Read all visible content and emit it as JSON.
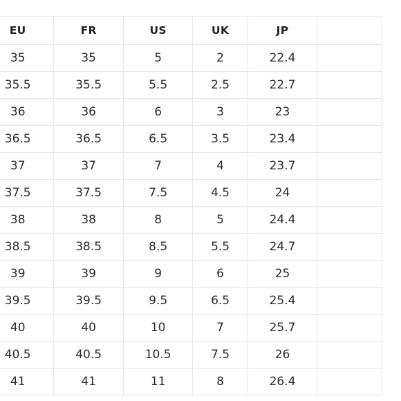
{
  "size_chart": {
    "headers": [
      "EU",
      "FR",
      "US",
      "UK",
      "JP",
      ""
    ],
    "rows": [
      [
        "35",
        "35",
        "5",
        "2",
        "22.4",
        ""
      ],
      [
        "35.5",
        "35.5",
        "5.5",
        "2.5",
        "22.7",
        ""
      ],
      [
        "36",
        "36",
        "6",
        "3",
        "23",
        ""
      ],
      [
        "36.5",
        "36.5",
        "6.5",
        "3.5",
        "23.4",
        ""
      ],
      [
        "37",
        "37",
        "7",
        "4",
        "23.7",
        ""
      ],
      [
        "37.5",
        "37.5",
        "7.5",
        "4.5",
        "24",
        ""
      ],
      [
        "38",
        "38",
        "8",
        "5",
        "24.4",
        ""
      ],
      [
        "38.5",
        "38.5",
        "8.5",
        "5.5",
        "24.7",
        ""
      ],
      [
        "39",
        "39",
        "9",
        "6",
        "25",
        ""
      ],
      [
        "39.5",
        "39.5",
        "9.5",
        "6.5",
        "25.4",
        ""
      ],
      [
        "40",
        "40",
        "10",
        "7",
        "25.7",
        ""
      ],
      [
        "40.5",
        "40.5",
        "10.5",
        "7.5",
        "26",
        ""
      ],
      [
        "41",
        "41",
        "11",
        "8",
        "26.4",
        ""
      ]
    ]
  },
  "colors": {
    "grid_line": "#e6e6e6",
    "text": "#222222",
    "background": "#ffffff"
  }
}
